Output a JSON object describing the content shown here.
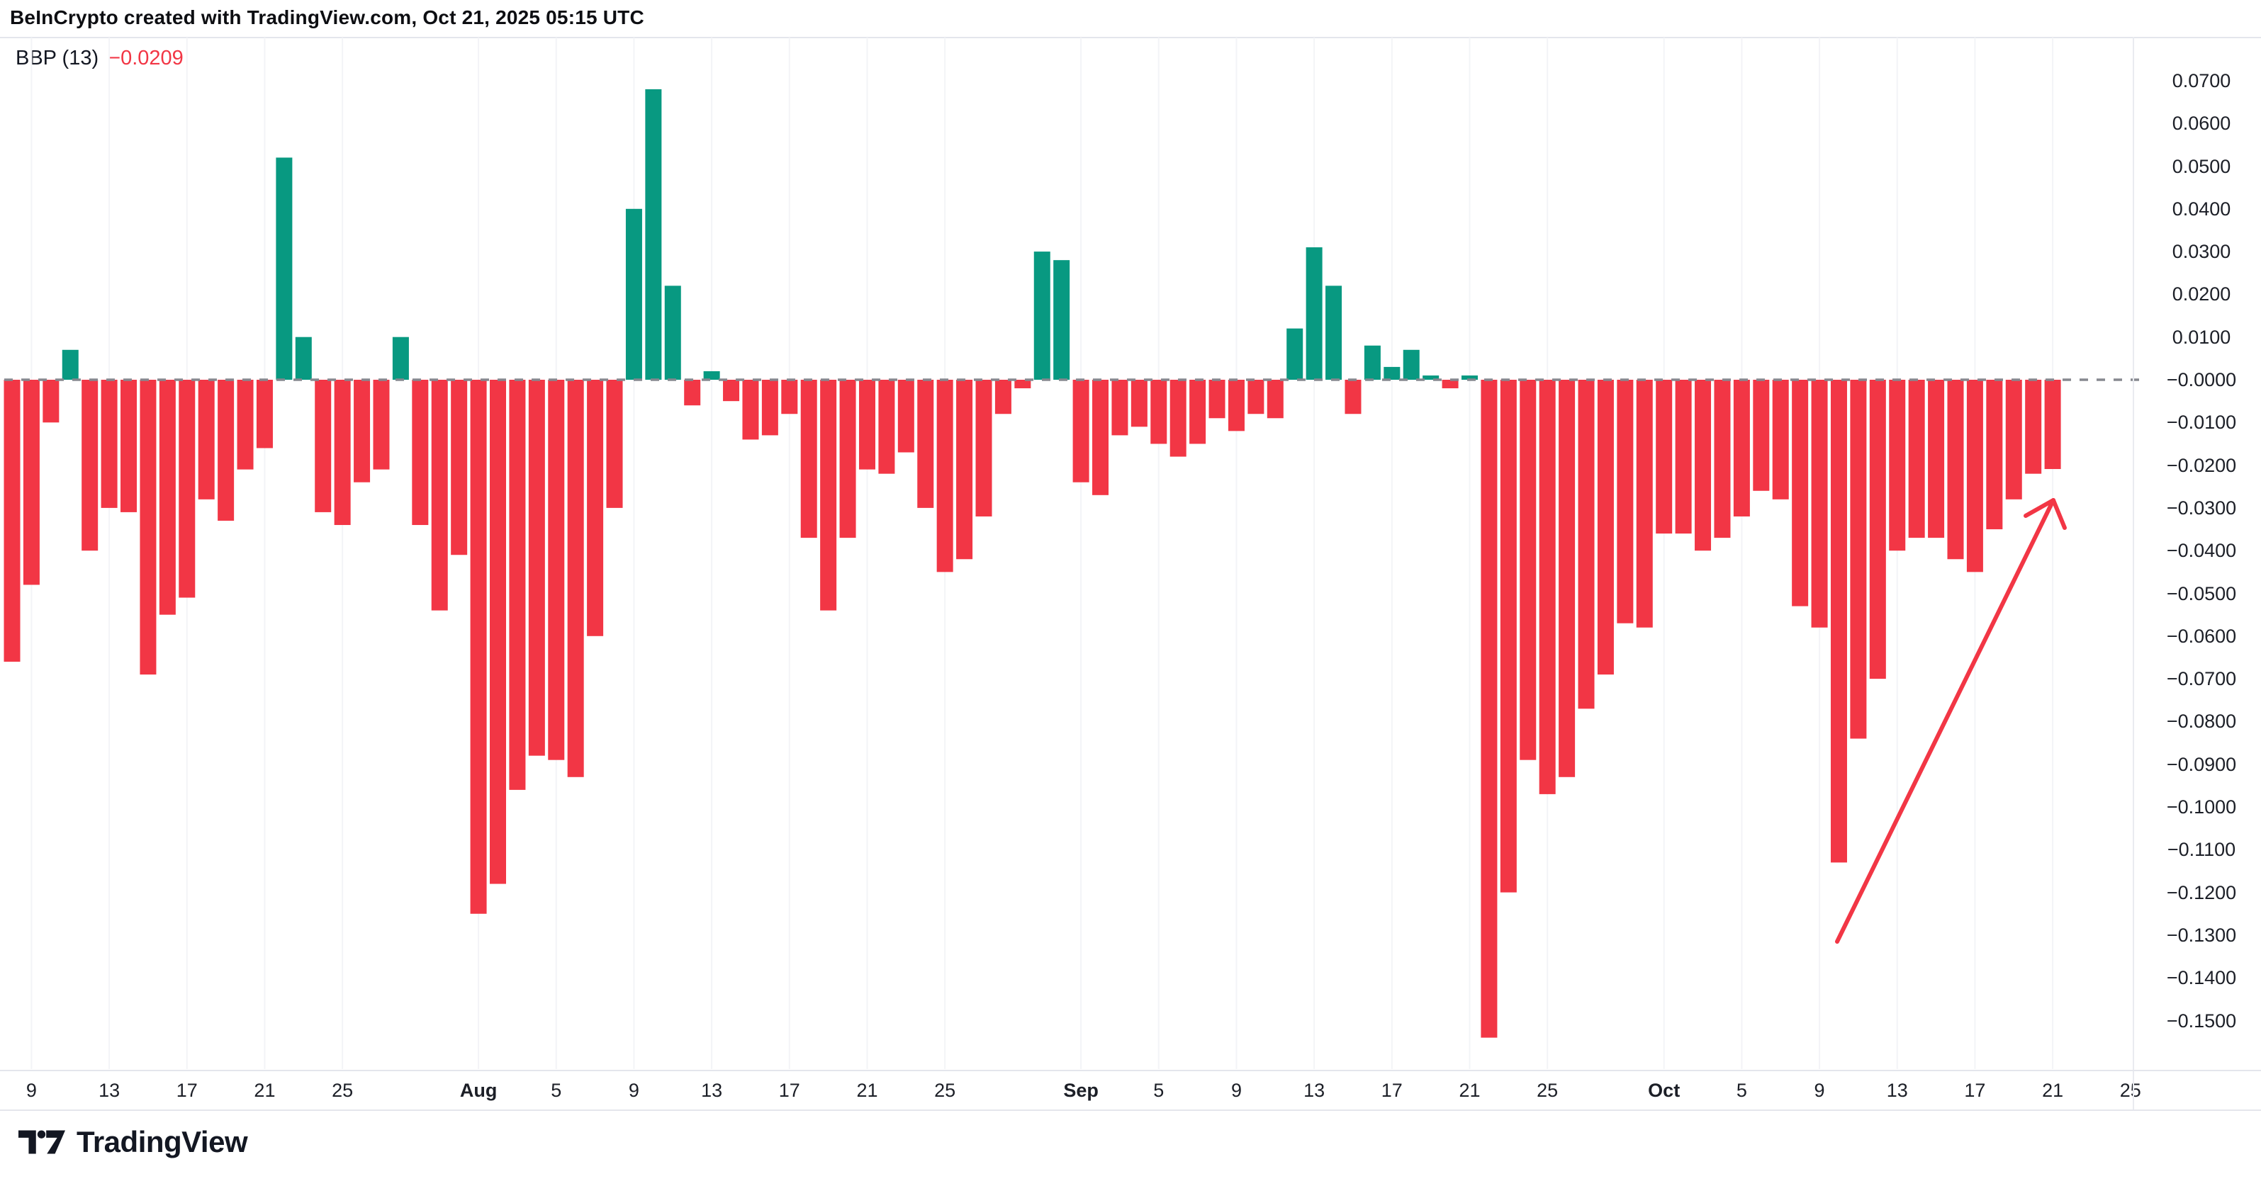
{
  "header": {
    "title": "BeInCrypto created with TradingView.com, Oct 21, 2025 05:15 UTC"
  },
  "indicator": {
    "name_label": "BBP (13)",
    "value_label": "−0.0209"
  },
  "colors": {
    "up": "#089981",
    "down": "#f23645",
    "zero_line": "#86888f",
    "grid": "#f3f4f7",
    "border": "#e4e6ec",
    "text": "#1c1f27",
    "indicator_value": "#f23645",
    "arrow": "#f23645",
    "logo": "#131722"
  },
  "chart_data": {
    "type": "bar",
    "title": "BBP (13)",
    "last_value": -0.0209,
    "ylim": [
      -0.155,
      0.072
    ],
    "grid": "faint-vertical-only",
    "zero_dashed_line": true,
    "up_color": "#089981",
    "down_color": "#f23645",
    "x": [
      "Jul 8",
      "Jul 9",
      "Jul 10",
      "Jul 11",
      "Jul 12",
      "Jul 13",
      "Jul 14",
      "Jul 15",
      "Jul 16",
      "Jul 17",
      "Jul 18",
      "Jul 19",
      "Jul 20",
      "Jul 21",
      "Jul 22",
      "Jul 23",
      "Jul 24",
      "Jul 25",
      "Jul 26",
      "Jul 27",
      "Jul 28",
      "Jul 29",
      "Jul 30",
      "Jul 31",
      "Aug 1",
      "Aug 2",
      "Aug 3",
      "Aug 4",
      "Aug 5",
      "Aug 6",
      "Aug 7",
      "Aug 8",
      "Aug 9",
      "Aug 10",
      "Aug 11",
      "Aug 12",
      "Aug 13",
      "Aug 14",
      "Aug 15",
      "Aug 16",
      "Aug 17",
      "Aug 18",
      "Aug 19",
      "Aug 20",
      "Aug 21",
      "Aug 22",
      "Aug 23",
      "Aug 24",
      "Aug 25",
      "Aug 26",
      "Aug 27",
      "Aug 28",
      "Aug 29",
      "Aug 30",
      "Aug 31",
      "Sep 1",
      "Sep 2",
      "Sep 3",
      "Sep 4",
      "Sep 5",
      "Sep 6",
      "Sep 7",
      "Sep 8",
      "Sep 9",
      "Sep 10",
      "Sep 11",
      "Sep 12",
      "Sep 13",
      "Sep 14",
      "Sep 15",
      "Sep 16",
      "Sep 17",
      "Sep 18",
      "Sep 19",
      "Sep 20",
      "Sep 21",
      "Sep 22",
      "Sep 23",
      "Sep 24",
      "Sep 25",
      "Sep 26",
      "Sep 27",
      "Sep 28",
      "Sep 29",
      "Sep 30",
      "Oct 1",
      "Oct 2",
      "Oct 3",
      "Oct 4",
      "Oct 5",
      "Oct 6",
      "Oct 7",
      "Oct 8",
      "Oct 9",
      "Oct 10",
      "Oct 11",
      "Oct 12",
      "Oct 13",
      "Oct 14",
      "Oct 15",
      "Oct 16",
      "Oct 17",
      "Oct 18",
      "Oct 19",
      "Oct 20",
      "Oct 21"
    ],
    "values": [
      -0.066,
      -0.048,
      -0.01,
      0.007,
      -0.04,
      -0.03,
      -0.031,
      -0.069,
      -0.055,
      -0.051,
      -0.028,
      -0.033,
      -0.021,
      -0.016,
      0.052,
      0.01,
      -0.031,
      -0.034,
      -0.024,
      -0.021,
      0.01,
      -0.034,
      -0.054,
      -0.041,
      -0.125,
      -0.118,
      -0.096,
      -0.088,
      -0.089,
      -0.093,
      -0.06,
      -0.03,
      0.04,
      0.068,
      0.022,
      -0.006,
      0.002,
      -0.005,
      -0.014,
      -0.013,
      -0.008,
      -0.037,
      -0.054,
      -0.037,
      -0.021,
      -0.022,
      -0.017,
      -0.03,
      -0.045,
      -0.042,
      -0.032,
      -0.008,
      -0.002,
      0.03,
      0.028,
      -0.024,
      -0.027,
      -0.013,
      -0.011,
      -0.015,
      -0.018,
      -0.015,
      -0.009,
      -0.012,
      -0.008,
      -0.009,
      0.012,
      0.031,
      0.022,
      -0.008,
      0.008,
      0.003,
      0.007,
      0.001,
      -0.002,
      0.001,
      -0.154,
      -0.12,
      -0.089,
      -0.097,
      -0.093,
      -0.077,
      -0.069,
      -0.057,
      -0.058,
      -0.036,
      -0.036,
      -0.04,
      -0.037,
      -0.032,
      -0.026,
      -0.028,
      -0.053,
      -0.058,
      -0.113,
      -0.084,
      -0.07,
      -0.04,
      -0.037,
      -0.037,
      -0.042,
      -0.045,
      -0.035,
      -0.028,
      -0.022,
      -0.0209
    ],
    "y_ticks": [
      {
        "text": "0.0700",
        "v": 0.07
      },
      {
        "text": "0.0600",
        "v": 0.06
      },
      {
        "text": "0.0500",
        "v": 0.05
      },
      {
        "text": "0.0400",
        "v": 0.04
      },
      {
        "text": "0.0300",
        "v": 0.03
      },
      {
        "text": "0.0200",
        "v": 0.02
      },
      {
        "text": "0.0100",
        "v": 0.01
      },
      {
        "text": "−0.0000",
        "v": 0.0
      },
      {
        "text": "−0.0100",
        "v": -0.01
      },
      {
        "text": "−0.0200",
        "v": -0.02
      },
      {
        "text": "−0.0300",
        "v": -0.03
      },
      {
        "text": "−0.0400",
        "v": -0.04
      },
      {
        "text": "−0.0500",
        "v": -0.05
      },
      {
        "text": "−0.0600",
        "v": -0.06
      },
      {
        "text": "−0.0700",
        "v": -0.07
      },
      {
        "text": "−0.0800",
        "v": -0.08
      },
      {
        "text": "−0.0900",
        "v": -0.09
      },
      {
        "text": "−0.1000",
        "v": -0.1
      },
      {
        "text": "−0.1100",
        "v": -0.11
      },
      {
        "text": "−0.1200",
        "v": -0.12
      },
      {
        "text": "−0.1300",
        "v": -0.13
      },
      {
        "text": "−0.1400",
        "v": -0.14
      },
      {
        "text": "−0.1500",
        "v": -0.15
      }
    ],
    "x_ticks": [
      {
        "label": "9",
        "i": 1,
        "bold": false
      },
      {
        "label": "13",
        "i": 5,
        "bold": false
      },
      {
        "label": "17",
        "i": 9,
        "bold": false
      },
      {
        "label": "21",
        "i": 13,
        "bold": false
      },
      {
        "label": "25",
        "i": 17,
        "bold": false
      },
      {
        "label": "Aug",
        "i": 24,
        "bold": true
      },
      {
        "label": "5",
        "i": 28,
        "bold": false
      },
      {
        "label": "9",
        "i": 32,
        "bold": false
      },
      {
        "label": "13",
        "i": 36,
        "bold": false
      },
      {
        "label": "17",
        "i": 40,
        "bold": false
      },
      {
        "label": "21",
        "i": 44,
        "bold": false
      },
      {
        "label": "25",
        "i": 48,
        "bold": false
      },
      {
        "label": "Sep",
        "i": 55,
        "bold": true
      },
      {
        "label": "5",
        "i": 59,
        "bold": false
      },
      {
        "label": "9",
        "i": 63,
        "bold": false
      },
      {
        "label": "13",
        "i": 67,
        "bold": false
      },
      {
        "label": "17",
        "i": 71,
        "bold": false
      },
      {
        "label": "21",
        "i": 75,
        "bold": false
      },
      {
        "label": "25",
        "i": 79,
        "bold": false
      },
      {
        "label": "Oct",
        "i": 85,
        "bold": true
      },
      {
        "label": "5",
        "i": 89,
        "bold": false
      },
      {
        "label": "9",
        "i": 93,
        "bold": false
      },
      {
        "label": "13",
        "i": 97,
        "bold": false
      },
      {
        "label": "17",
        "i": 101,
        "bold": false
      },
      {
        "label": "21",
        "i": 105,
        "bold": false
      },
      {
        "label": "25",
        "i": 109,
        "bold": false
      }
    ]
  },
  "annotation_arrow": {
    "tail": [
      2592,
      1329
    ],
    "tip": [
      2897,
      706
    ],
    "barb_left": [
      2858,
      728
    ],
    "barb_right": [
      2913,
      745
    ]
  },
  "footer": {
    "brand": "TradingView"
  }
}
